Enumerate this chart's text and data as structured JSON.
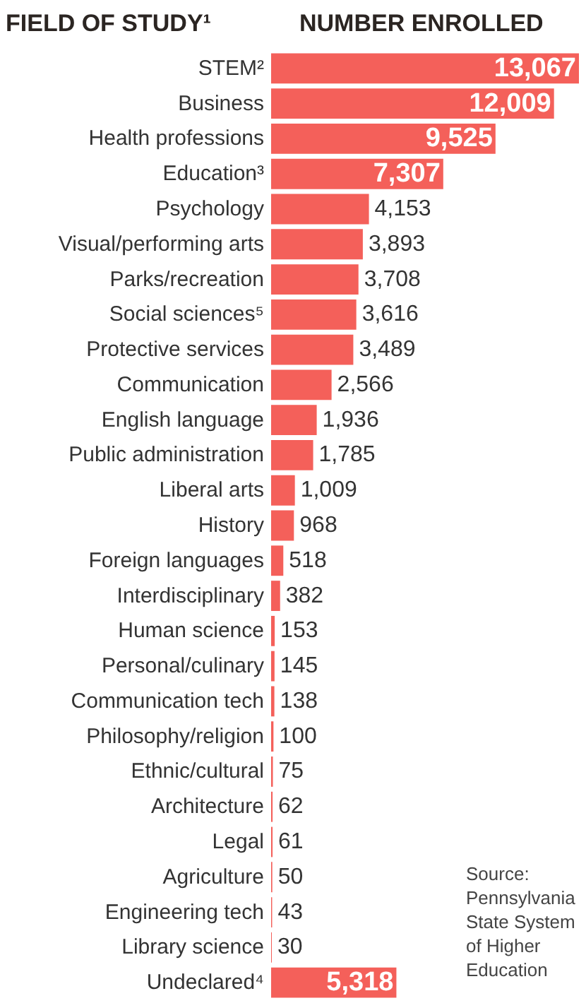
{
  "chart_data": {
    "type": "bar",
    "orientation": "horizontal",
    "ylabel": "FIELD OF STUDY¹",
    "xlabel": "NUMBER ENROLLED",
    "categories": [
      "STEM²",
      "Business",
      "Health professions",
      "Education³",
      "Psychology",
      "Visual/performing arts",
      "Parks/recreation",
      "Social sciences⁵",
      "Protective services",
      "Communication",
      "English language",
      "Public administration",
      "Liberal arts",
      "History",
      "Foreign languages",
      "Interdisciplinary",
      "Human science",
      "Personal/culinary",
      "Communication tech",
      "Philosophy/religion",
      "Ethnic/cultural",
      "Architecture",
      "Legal",
      "Agriculture",
      "Engineering tech",
      "Library science",
      "Undeclared⁴"
    ],
    "values": [
      13067,
      12009,
      9525,
      7307,
      4153,
      3893,
      3708,
      3616,
      3489,
      2566,
      1936,
      1785,
      1009,
      968,
      518,
      382,
      153,
      145,
      138,
      100,
      75,
      62,
      61,
      50,
      43,
      30,
      5318
    ],
    "value_labels": [
      "13,067",
      "12,009",
      "9,525",
      "7,307",
      "4,153",
      "3,893",
      "3,708",
      "3,616",
      "3,489",
      "2,566",
      "1,936",
      "1,785",
      "1,009",
      "968",
      "518",
      "382",
      "153",
      "145",
      "138",
      "100",
      "75",
      "62",
      "61",
      "50",
      "43",
      "30",
      "5,318"
    ],
    "color": "#f4605a",
    "annotations": [
      "Source: Pennsylvania State System of Higher Education"
    ]
  }
}
